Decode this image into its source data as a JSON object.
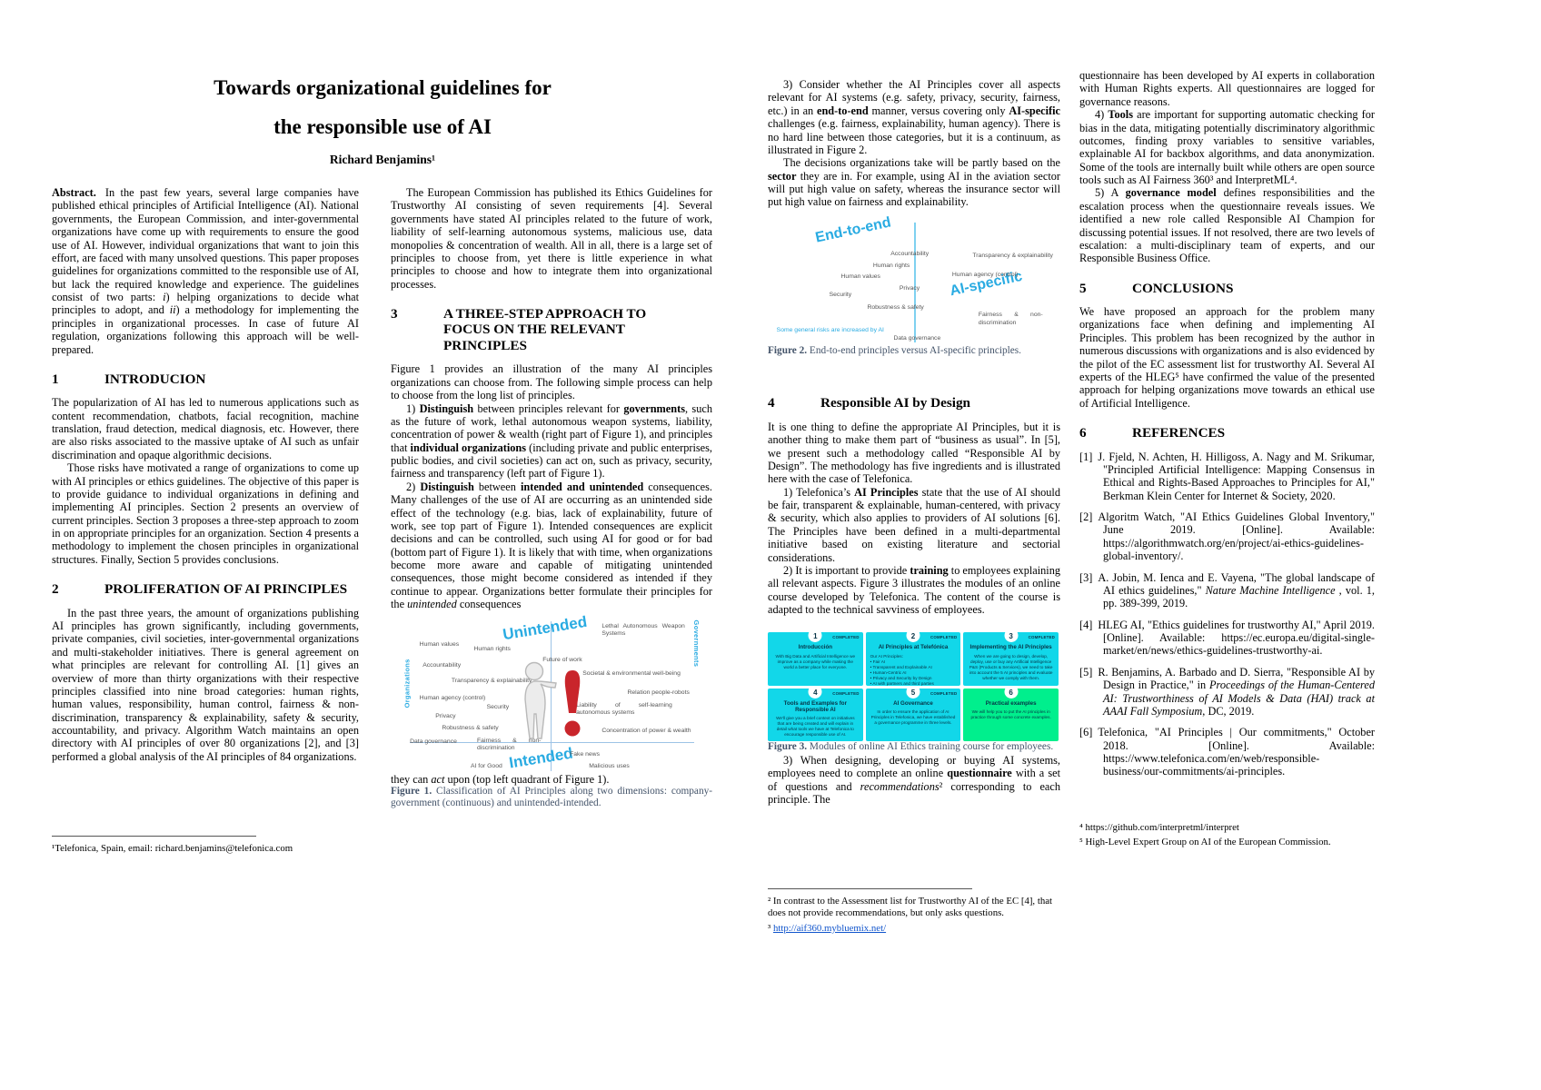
{
  "colors": {
    "figure_accent": "#29ABE2",
    "caption": "#44546A",
    "axis_line": "#9DC3E6",
    "card_cyan": "#12D7E9",
    "card_green": "#00EF8D",
    "card_text": "#063346",
    "link": "#1155CC",
    "exclamation_red": "#C9252B"
  },
  "left": {
    "title1": "Towards organizational guidelines for",
    "title2": "the responsible use of AI",
    "author": "Richard Benjamins¹",
    "col1": {
      "abstract_label": "Abstract.",
      "abstract": "In the past few years, several large companies have published ethical principles of Artificial Intelligence (AI). National governments, the European Commission, and inter-governmental organizations have come up with requirements to ensure the good use of AI. However, individual organizations that want to join this effort, are faced with many unsolved questions. This paper proposes guidelines for organizations committed to the responsible use of AI, but lack the required knowledge and experience. The guidelines consist of two parts: *i*) helping organizations to decide what principles to adopt, and *ii*) a methodology for implementing the principles in organizational processes. In case of future AI regulation, organizations following this approach will be well-prepared.",
      "s1_num": "1",
      "s1_title": "INTRODUCION",
      "s1_p1": "The popularization of AI has led to numerous applications such as content recommendation, chatbots, facial recognition, machine translation, fraud detection, medical diagnosis, etc. However, there are also risks associated to the massive uptake of AI such as unfair discrimination and opaque algorithmic decisions.",
      "s1_p2": "Those risks have motivated a range of organizations to come up with AI principles or ethics guidelines. The objective of this paper is to provide guidance to individual organizations in defining and implementing AI principles. Section 2 presents an overview of current principles. Section 3 proposes a three-step approach to zoom in on appropriate principles for an organization. Section 4 presents a methodology to implement the chosen principles in organizational structures. Finally, Section 5 provides conclusions.",
      "s2_num": "2",
      "s2_title": "PROLIFERATION OF AI PRINCIPLES",
      "s2_p1": "In the past three years, the amount of organizations publishing AI principles has grown significantly, including governments, private companies, civil societies, inter-governmental organizations and multi-stakeholder initiatives. There is general agreement on what principles are relevant for controlling AI. [1] gives an overview of more than thirty organizations with their respective principles classified into nine broad categories: human rights, human values, responsibility, human control, fairness & non-discrimination, transparency & explainability, safety & security, accountability, and privacy. Algorithm Watch maintains an open directory with AI principles of over 80 organizations [2], and [3] performed a global analysis of the AI principles of 84 organizations.",
      "footnote": "¹Telefonica, Spain, email: richard.benjamins@telefonica.com"
    },
    "col2": {
      "p_ec": "The European Commission has published its Ethics Guidelines for Trustworthy AI consisting of seven requirements [4]. Several governments have stated AI principles related to the future of work, liability of self-learning autonomous systems, malicious use, data monopolies & concentration of wealth. All in all, there is a large set of principles to choose from, yet there is little experience in what principles to choose and how to integrate them into organizational processes.",
      "s3_num": "3",
      "s3_title": "A THREE-STEP APPROACH TO FOCUS ON THE RELEVANT PRINCIPLES",
      "s3_p1": "Figure 1 provides an illustration of the many AI principles organizations can choose from. The following simple process can help to choose from the long list of principles.",
      "s3_p2": "1) **Distinguish** between principles relevant for **governments**, such as the future of work, lethal autonomous weapon systems, liability, concentration of power & wealth (right part of Figure 1), and principles that **individual organizations** (including private and public enterprises, public bodies, and civil societies) can act on, such as privacy, security, fairness and transparency (left part of Figure 1).",
      "s3_p3": "2) **Distinguish** between **intended and unintended** consequences. Many challenges of the use of AI are occurring as an unintended side effect of the technology (e.g. bias, lack of explainability, future of work, see top part of Figure 1). Intended consequences are explicit decisions and can be controlled, such using AI for good or for bad (bottom part of Figure 1). It is likely that with time, when organizations become more aware and capable of mitigating unintended consequences, those might become considered as intended if they continue to appear. Organizations better formulate their principles for the *unintended* consequences",
      "p_after_fig": "they can *act* upon (top left quadrant of Figure 1).",
      "fig1": {
        "quad_top": "Unintended",
        "quad_bottom": "Intended",
        "axis_left": "Organizations",
        "axis_right": "Governments",
        "labels": [
          "Human values",
          "Human rights",
          "Future of work",
          "Lethal Autonomous Weapon Systems",
          "Accountability",
          "Transparency & explainability",
          "Societal & environmental well-being",
          "Relation people-robots",
          "Human agency (control)",
          "Security",
          "Privacy",
          "Liability of self-learning autonomous systems",
          "Robustness & safety",
          "Concentration of power & wealth",
          "Data governance",
          "Fairness & non-discrimination",
          "Fake news",
          "AI for Good",
          "Malicious uses"
        ],
        "caption_label": "Figure 1.",
        "caption": "Classification of AI Principles along two dimensions: company-government (continuous) and unintended-intended."
      }
    }
  },
  "right": {
    "col1": {
      "p1": "3) Consider whether the AI Principles cover all aspects relevant for AI systems (e.g. safety, privacy, security, fairness, etc.) in an **end-to-end** manner, versus covering only **AI-specific** challenges (e.g. fairness, explainability, human agency). There is no hard line between those categories, but it is a continuum, as illustrated in Figure 2.",
      "p2": "The decisions organizations take will be partly based on the **sector** they are in. For example, using AI in the aviation sector will put high value on safety, whereas the insurance sector will put high value on fairness and explainability.",
      "fig2": {
        "quad_top": "End-to-end",
        "quad_bottom": "AI-specific",
        "note": "Some general risks are increased by AI",
        "labels": [
          "Accountability",
          "Human rights",
          "Human values",
          "Privacy",
          "Security",
          "Robustness & safety",
          "Transparency & explainability",
          "Human agency (control)",
          "Fairness & non-discrimination",
          "Data governance"
        ],
        "caption_label": "Figure 2.",
        "caption": "End-to-end principles versus AI-specific principles."
      },
      "s4_num": "4",
      "s4_title": "Responsible AI by Design",
      "s4_p1": "It is one thing to define the appropriate AI Principles, but it is another thing to make them part of “business as usual”. In [5], we present such a methodology called “Responsible AI by Design”. The methodology has five ingredients and is illustrated here with the case of Telefonica.",
      "s4_p2": "1) Telefonica’s **AI Principles** state that the use of AI should be fair, transparent & explainable, human-centered, with privacy & security, which also applies to providers of AI solutions [6]. The Principles have been defined in a multi-departmental initiative based on existing literature and sectorial considerations.",
      "s4_p3": "2) It is important to provide **training** to employees explaining all relevant aspects. Figure 3 illustrates the modules of an online course developed by Telefonica. The content of the course is adapted to the technical savviness of employees.",
      "s4_p4": "3) When designing, developing or buying AI systems, employees need to complete an online **questionnaire** with a set of questions and *recommendations*² corresponding to each principle. The",
      "fig3": {
        "cards": [
          {
            "num": "1",
            "status": "COMPLETED",
            "title": "Introducción",
            "body": "With Big Data and Artificial Intelligence we improve as a company while making the world a better place for everyone."
          },
          {
            "num": "2",
            "status": "COMPLETED",
            "title": "AI Principles at Telefónica",
            "body": "Our AI Principles:\n• Fair AI\n• Transparent and Explainable AI\n• Human-Centric AI\n• Privacy and Security by Design\n• AI with partners and third parties"
          },
          {
            "num": "3",
            "status": "COMPLETED",
            "title": "Implementing the AI Principles",
            "body": "When we are going to design, develop, deploy, use or buy any Artificial Intelligence P&S (Products & Services), we need to take into account the 5 AI principles and evaluate whether we comply with them."
          },
          {
            "num": "4",
            "status": "COMPLETED",
            "title": "Tools and Examples for Responsible AI",
            "body": "We'll give you a brief context on initiatives that are being created and will explain in detail what tools we have at Telefonica to encourage responsible use of AI."
          },
          {
            "num": "5",
            "status": "COMPLETED",
            "title": "AI Governance",
            "body": "In order to ensure the application of AI Principles in Telefonica, we have established a governance programme in three levels."
          },
          {
            "num": "6",
            "status": "",
            "title": "Practical examples",
            "body": "We will help you to put the AI principles in practice through some concrete examples."
          }
        ],
        "caption_label": "Figure 3.",
        "caption": "Modules of online AI Ethics training course for employees."
      },
      "fn2": "² In contrast to the Assessment list for Trustworthy AI of the EC [4], that does not provide recommendations, but only asks questions.",
      "fn3_marker": "³ ",
      "fn3_link": "http://aif360.mybluemix.net/"
    },
    "col2": {
      "p_cont": "questionnaire has been developed by AI experts in collaboration with Human Rights experts. All questionnaires are logged for governance reasons.",
      "p_tools": "4) **Tools** are important for supporting automatic checking for bias in the data, mitigating potentially discriminatory algorithmic outcomes, finding proxy variables to sensitive variables, explainable AI for backbox algorithms, and data anonymization. Some of the tools are internally built while others are open source tools such as AI Fairness 360³ and InterpretML⁴.",
      "p_gov": "5) A **governance model** defines responsibilities and the escalation process when the questionnaire reveals issues. We identified a new role called Responsible AI Champion for discussing potential issues. If not resolved, there are two levels of escalation: a multi-disciplinary team of experts, and our Responsible Business Office.",
      "s5_num": "5",
      "s5_title": "CONCLUSIONS",
      "s5_p1": "We have proposed an approach for the problem many organizations face when defining and implementing AI Principles. This problem has been recognized by the author in numerous discussions with organizations and is also evidenced by the pilot of the EC assessment list for trustworthy AI. Several AI experts of the HLEG⁵ have confirmed the value of the presented approach for helping organizations move towards an ethical use of Artificial Intelligence.",
      "s6_num": "6",
      "s6_title": "REFERENCES",
      "refs": [
        {
          "marker": "[1]",
          "text": "J. Fjeld, N. Achten, H. Hilligoss, A. Nagy and M. Srikumar, \"Principled Artificial Intelligence: Mapping Consensus in Ethical and Rights-Based Approaches to Principles for AI,\" Berkman Klein Center for Internet & Society, 2020."
        },
        {
          "marker": "[2]",
          "text": "Algoritm Watch, \"AI Ethics Guidelines Global Inventory,\" June 2019. [Online]. Available: https://algorithmwatch.org/en/project/ai-ethics-guidelines-global-inventory/."
        },
        {
          "marker": "[3]",
          "text": "A. Jobin, M. Ienca and E. Vayena, \"The global landscape of AI ethics guidelines,\" *Nature Machine Intelligence* , vol. 1, pp. 389-399, 2019."
        },
        {
          "marker": "[4]",
          "text": "HLEG AI, \"Ethics guidelines for trustworthy AI,\" April 2019. [Online]. Available: https://ec.europa.eu/digital-single-market/en/news/ethics-guidelines-trustworthy-ai."
        },
        {
          "marker": "[5]",
          "text": "R. Benjamins, A. Barbado and D. Sierra, \"Responsible AI by Design in Practice,\" in *Proceedings of the Human-Centered AI: Trustworthiness of AI Models & Data (HAI) track at AAAI Fall Symposium*, DC, 2019."
        },
        {
          "marker": "[6]",
          "text": "Telefonica, \"AI Principles | Our commitments,\" October 2018. [Online]. Available: https://www.telefonica.com/en/web/responsible-business/our-commitments/ai-principles."
        }
      ],
      "fn4": "⁴ https://github.com/interpretml/interpret",
      "fn5": "⁵ High-Level Expert Group on AI of the European Commission."
    }
  }
}
